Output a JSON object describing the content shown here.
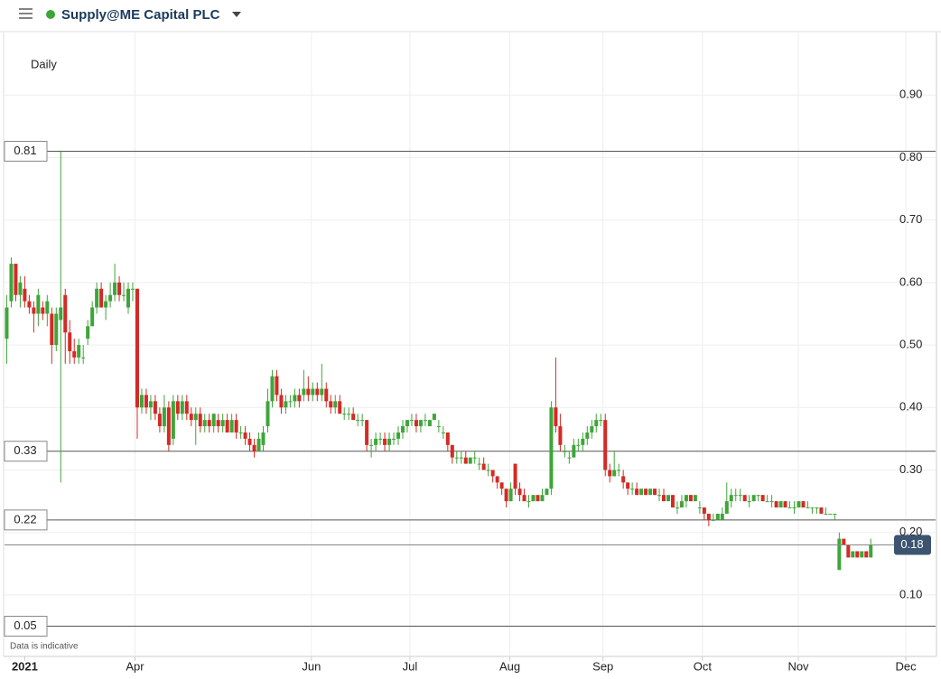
{
  "header": {
    "title": "Supply@ME Capital PLC"
  },
  "chart_data": {
    "type": "candlestick",
    "interval_label": "Daily",
    "footnote": "Data is indicative",
    "up_color": "#3fa53a",
    "down_color": "#d42a25",
    "ylim": [
      0.032,
      1.0
    ],
    "yticks": [
      {
        "value": 0.1,
        "label": "0.10"
      },
      {
        "value": 0.2,
        "label": "0.20"
      },
      {
        "value": 0.3,
        "label": "0.30"
      },
      {
        "value": 0.4,
        "label": "0.40"
      },
      {
        "value": 0.5,
        "label": "0.50"
      },
      {
        "value": 0.6,
        "label": "0.60"
      },
      {
        "value": 0.7,
        "label": "0.70"
      },
      {
        "value": 0.8,
        "label": "0.80"
      },
      {
        "value": 0.9,
        "label": "0.90"
      }
    ],
    "xlim": [
      -1.5,
      206
    ],
    "xticks": [
      {
        "value": 4,
        "label": "2021"
      },
      {
        "value": 28.5,
        "label": "Apr"
      },
      {
        "value": 67.7,
        "label": "Jun"
      },
      {
        "value": 89.6,
        "label": "Jul"
      },
      {
        "value": 111.8,
        "label": "Aug"
      },
      {
        "value": 132.5,
        "label": "Sep"
      },
      {
        "value": 154.6,
        "label": "Oct"
      },
      {
        "value": 175.9,
        "label": "Nov"
      },
      {
        "value": 199.8,
        "label": "Dec"
      }
    ],
    "levels": [
      0.81,
      0.33,
      0.22,
      0.05
    ],
    "last_price": 0.18,
    "candles": [
      [
        0.51,
        0.58,
        0.47,
        0.56
      ],
      [
        0.57,
        0.64,
        0.56,
        0.63
      ],
      [
        0.63,
        0.63,
        0.57,
        0.58
      ],
      [
        0.58,
        0.61,
        0.56,
        0.6
      ],
      [
        0.59,
        0.61,
        0.56,
        0.57
      ],
      [
        0.57,
        0.58,
        0.55,
        0.56
      ],
      [
        0.56,
        0.57,
        0.52,
        0.55
      ],
      [
        0.55,
        0.59,
        0.53,
        0.58
      ],
      [
        0.56,
        0.57,
        0.54,
        0.55
      ],
      [
        0.55,
        0.58,
        0.53,
        0.57
      ],
      [
        0.55,
        0.56,
        0.47,
        0.5
      ],
      [
        0.5,
        0.56,
        0.49,
        0.55
      ],
      [
        0.54,
        0.81,
        0.28,
        0.56
      ],
      [
        0.58,
        0.59,
        0.47,
        0.52
      ],
      [
        0.52,
        0.54,
        0.47,
        0.49
      ],
      [
        0.49,
        0.51,
        0.47,
        0.48
      ],
      [
        0.48,
        0.51,
        0.47,
        0.5
      ],
      [
        0.48,
        0.5,
        0.47,
        0.48
      ],
      [
        0.51,
        0.54,
        0.5,
        0.53
      ],
      [
        0.53,
        0.57,
        0.53,
        0.56
      ],
      [
        0.56,
        0.6,
        0.55,
        0.59
      ],
      [
        0.59,
        0.6,
        0.56,
        0.56
      ],
      [
        0.56,
        0.58,
        0.54,
        0.57
      ],
      [
        0.57,
        0.6,
        0.56,
        0.58
      ],
      [
        0.58,
        0.63,
        0.57,
        0.6
      ],
      [
        0.6,
        0.61,
        0.57,
        0.58
      ],
      [
        0.58,
        0.6,
        0.57,
        0.58
      ],
      [
        0.56,
        0.6,
        0.55,
        0.59
      ],
      [
        0.59,
        0.6,
        0.57,
        0.59
      ],
      [
        0.59,
        0.59,
        0.35,
        0.4
      ],
      [
        0.4,
        0.43,
        0.39,
        0.42
      ],
      [
        0.42,
        0.43,
        0.39,
        0.4
      ],
      [
        0.4,
        0.42,
        0.38,
        0.41
      ],
      [
        0.41,
        0.42,
        0.38,
        0.39
      ],
      [
        0.39,
        0.4,
        0.36,
        0.37
      ],
      [
        0.37,
        0.42,
        0.36,
        0.4
      ],
      [
        0.4,
        0.41,
        0.33,
        0.34
      ],
      [
        0.35,
        0.42,
        0.34,
        0.41
      ],
      [
        0.41,
        0.42,
        0.38,
        0.39
      ],
      [
        0.39,
        0.42,
        0.38,
        0.41
      ],
      [
        0.41,
        0.42,
        0.38,
        0.39
      ],
      [
        0.39,
        0.4,
        0.37,
        0.38
      ],
      [
        0.38,
        0.4,
        0.34,
        0.39
      ],
      [
        0.39,
        0.4,
        0.36,
        0.37
      ],
      [
        0.37,
        0.39,
        0.36,
        0.38
      ],
      [
        0.38,
        0.39,
        0.36,
        0.37
      ],
      [
        0.37,
        0.39,
        0.36,
        0.39
      ],
      [
        0.38,
        0.39,
        0.36,
        0.37
      ],
      [
        0.37,
        0.39,
        0.36,
        0.38
      ],
      [
        0.38,
        0.39,
        0.36,
        0.36
      ],
      [
        0.36,
        0.39,
        0.36,
        0.38
      ],
      [
        0.38,
        0.39,
        0.35,
        0.36
      ],
      [
        0.36,
        0.37,
        0.35,
        0.36
      ],
      [
        0.36,
        0.37,
        0.34,
        0.35
      ],
      [
        0.35,
        0.36,
        0.33,
        0.34
      ],
      [
        0.34,
        0.35,
        0.32,
        0.33
      ],
      [
        0.33,
        0.36,
        0.33,
        0.35
      ],
      [
        0.34,
        0.37,
        0.33,
        0.36
      ],
      [
        0.37,
        0.43,
        0.36,
        0.41
      ],
      [
        0.41,
        0.46,
        0.4,
        0.45
      ],
      [
        0.45,
        0.46,
        0.41,
        0.42
      ],
      [
        0.42,
        0.43,
        0.39,
        0.4
      ],
      [
        0.4,
        0.42,
        0.39,
        0.41
      ],
      [
        0.41,
        0.42,
        0.4,
        0.41
      ],
      [
        0.41,
        0.43,
        0.4,
        0.42
      ],
      [
        0.42,
        0.43,
        0.4,
        0.41
      ],
      [
        0.42,
        0.46,
        0.41,
        0.43
      ],
      [
        0.43,
        0.45,
        0.41,
        0.42
      ],
      [
        0.42,
        0.44,
        0.41,
        0.43
      ],
      [
        0.43,
        0.44,
        0.41,
        0.42
      ],
      [
        0.42,
        0.47,
        0.41,
        0.43
      ],
      [
        0.43,
        0.44,
        0.4,
        0.41
      ],
      [
        0.41,
        0.42,
        0.39,
        0.4
      ],
      [
        0.4,
        0.42,
        0.39,
        0.41
      ],
      [
        0.41,
        0.42,
        0.39,
        0.39
      ],
      [
        0.39,
        0.4,
        0.38,
        0.39
      ],
      [
        0.39,
        0.4,
        0.38,
        0.39
      ],
      [
        0.39,
        0.4,
        0.38,
        0.38
      ],
      [
        0.38,
        0.39,
        0.37,
        0.38
      ],
      [
        0.38,
        0.39,
        0.37,
        0.38
      ],
      [
        0.38,
        0.38,
        0.33,
        0.34
      ],
      [
        0.34,
        0.35,
        0.32,
        0.34
      ],
      [
        0.34,
        0.36,
        0.33,
        0.35
      ],
      [
        0.35,
        0.36,
        0.34,
        0.35
      ],
      [
        0.35,
        0.36,
        0.33,
        0.34
      ],
      [
        0.34,
        0.36,
        0.33,
        0.35
      ],
      [
        0.35,
        0.36,
        0.34,
        0.35
      ],
      [
        0.35,
        0.37,
        0.34,
        0.36
      ],
      [
        0.36,
        0.38,
        0.35,
        0.37
      ],
      [
        0.37,
        0.38,
        0.36,
        0.38
      ],
      [
        0.38,
        0.39,
        0.37,
        0.38
      ],
      [
        0.38,
        0.39,
        0.36,
        0.37
      ],
      [
        0.37,
        0.38,
        0.36,
        0.38
      ],
      [
        0.38,
        0.39,
        0.37,
        0.38
      ],
      [
        0.37,
        0.38,
        0.37,
        0.38
      ],
      [
        0.38,
        0.39,
        0.38,
        0.39
      ],
      [
        0.37,
        0.38,
        0.36,
        0.37
      ],
      [
        0.36,
        0.37,
        0.35,
        0.36
      ],
      [
        0.36,
        0.36,
        0.33,
        0.34
      ],
      [
        0.34,
        0.34,
        0.31,
        0.32
      ],
      [
        0.32,
        0.33,
        0.31,
        0.32
      ],
      [
        0.32,
        0.33,
        0.31,
        0.32
      ],
      [
        0.32,
        0.33,
        0.31,
        0.31
      ],
      [
        0.31,
        0.32,
        0.31,
        0.32
      ],
      [
        0.32,
        0.33,
        0.31,
        0.32
      ],
      [
        0.31,
        0.32,
        0.3,
        0.31
      ],
      [
        0.31,
        0.32,
        0.3,
        0.3
      ],
      [
        0.3,
        0.31,
        0.29,
        0.3
      ],
      [
        0.3,
        0.3,
        0.28,
        0.29
      ],
      [
        0.29,
        0.29,
        0.27,
        0.28
      ],
      [
        0.28,
        0.28,
        0.26,
        0.27
      ],
      [
        0.27,
        0.27,
        0.24,
        0.25
      ],
      [
        0.25,
        0.28,
        0.25,
        0.27
      ],
      [
        0.31,
        0.31,
        0.26,
        0.27
      ],
      [
        0.27,
        0.28,
        0.25,
        0.26
      ],
      [
        0.26,
        0.27,
        0.25,
        0.25
      ],
      [
        0.25,
        0.26,
        0.24,
        0.25
      ],
      [
        0.25,
        0.26,
        0.25,
        0.26
      ],
      [
        0.26,
        0.26,
        0.25,
        0.25
      ],
      [
        0.25,
        0.27,
        0.25,
        0.26
      ],
      [
        0.26,
        0.27,
        0.26,
        0.27
      ],
      [
        0.27,
        0.41,
        0.26,
        0.4
      ],
      [
        0.4,
        0.48,
        0.36,
        0.37
      ],
      [
        0.37,
        0.39,
        0.33,
        0.34
      ],
      [
        0.33,
        0.34,
        0.32,
        0.33
      ],
      [
        0.32,
        0.33,
        0.31,
        0.32
      ],
      [
        0.32,
        0.35,
        0.32,
        0.34
      ],
      [
        0.34,
        0.35,
        0.33,
        0.34
      ],
      [
        0.34,
        0.36,
        0.33,
        0.35
      ],
      [
        0.35,
        0.37,
        0.34,
        0.36
      ],
      [
        0.36,
        0.38,
        0.35,
        0.37
      ],
      [
        0.37,
        0.39,
        0.36,
        0.38
      ],
      [
        0.38,
        0.39,
        0.37,
        0.38
      ],
      [
        0.38,
        0.39,
        0.29,
        0.3
      ],
      [
        0.3,
        0.31,
        0.28,
        0.29
      ],
      [
        0.29,
        0.33,
        0.29,
        0.3
      ],
      [
        0.3,
        0.31,
        0.29,
        0.3
      ],
      [
        0.29,
        0.3,
        0.27,
        0.28
      ],
      [
        0.28,
        0.28,
        0.26,
        0.27
      ],
      [
        0.27,
        0.28,
        0.26,
        0.27
      ],
      [
        0.27,
        0.28,
        0.26,
        0.26
      ],
      [
        0.26,
        0.27,
        0.26,
        0.27
      ],
      [
        0.27,
        0.27,
        0.26,
        0.26
      ],
      [
        0.26,
        0.27,
        0.26,
        0.27
      ],
      [
        0.27,
        0.27,
        0.26,
        0.26
      ],
      [
        0.26,
        0.27,
        0.25,
        0.26
      ],
      [
        0.26,
        0.27,
        0.25,
        0.25
      ],
      [
        0.25,
        0.26,
        0.25,
        0.26
      ],
      [
        0.26,
        0.26,
        0.24,
        0.24
      ],
      [
        0.24,
        0.25,
        0.23,
        0.24
      ],
      [
        0.24,
        0.26,
        0.24,
        0.25
      ],
      [
        0.25,
        0.26,
        0.24,
        0.26
      ],
      [
        0.26,
        0.26,
        0.25,
        0.25
      ],
      [
        0.25,
        0.26,
        0.25,
        0.26
      ],
      [
        0.24,
        0.25,
        0.23,
        0.24
      ],
      [
        0.24,
        0.24,
        0.22,
        0.23
      ],
      [
        0.23,
        0.23,
        0.21,
        0.22
      ],
      [
        0.22,
        0.23,
        0.22,
        0.22
      ],
      [
        0.22,
        0.23,
        0.22,
        0.23
      ],
      [
        0.22,
        0.24,
        0.22,
        0.23
      ],
      [
        0.23,
        0.28,
        0.23,
        0.25
      ],
      [
        0.25,
        0.27,
        0.24,
        0.26
      ],
      [
        0.26,
        0.27,
        0.25,
        0.26
      ],
      [
        0.26,
        0.27,
        0.25,
        0.26
      ],
      [
        0.26,
        0.26,
        0.25,
        0.25
      ],
      [
        0.25,
        0.26,
        0.24,
        0.25
      ],
      [
        0.25,
        0.26,
        0.25,
        0.26
      ],
      [
        0.26,
        0.26,
        0.25,
        0.26
      ],
      [
        0.26,
        0.26,
        0.25,
        0.25
      ],
      [
        0.25,
        0.26,
        0.25,
        0.25
      ],
      [
        0.25,
        0.26,
        0.24,
        0.25
      ],
      [
        0.25,
        0.25,
        0.24,
        0.24
      ],
      [
        0.24,
        0.25,
        0.24,
        0.25
      ],
      [
        0.25,
        0.25,
        0.24,
        0.24
      ],
      [
        0.24,
        0.25,
        0.24,
        0.24
      ],
      [
        0.24,
        0.25,
        0.23,
        0.24
      ],
      [
        0.24,
        0.25,
        0.24,
        0.25
      ],
      [
        0.25,
        0.25,
        0.24,
        0.24
      ],
      [
        0.24,
        0.25,
        0.24,
        0.24
      ],
      [
        0.24,
        0.24,
        0.23,
        0.24
      ],
      [
        0.24,
        0.24,
        0.23,
        0.24
      ],
      [
        0.24,
        0.24,
        0.23,
        0.23
      ],
      [
        0.23,
        0.24,
        0.23,
        0.23
      ],
      [
        0.23,
        0.23,
        0.23,
        0.23
      ],
      [
        0.23,
        0.23,
        0.22,
        0.23
      ],
      [
        0.14,
        0.2,
        0.14,
        0.19
      ],
      [
        0.19,
        0.19,
        0.18,
        0.18
      ],
      [
        0.18,
        0.18,
        0.16,
        0.16
      ],
      [
        0.16,
        0.17,
        0.16,
        0.17
      ],
      [
        0.17,
        0.17,
        0.16,
        0.16
      ],
      [
        0.16,
        0.17,
        0.16,
        0.17
      ],
      [
        0.17,
        0.17,
        0.16,
        0.16
      ],
      [
        0.16,
        0.19,
        0.16,
        0.18
      ]
    ]
  }
}
